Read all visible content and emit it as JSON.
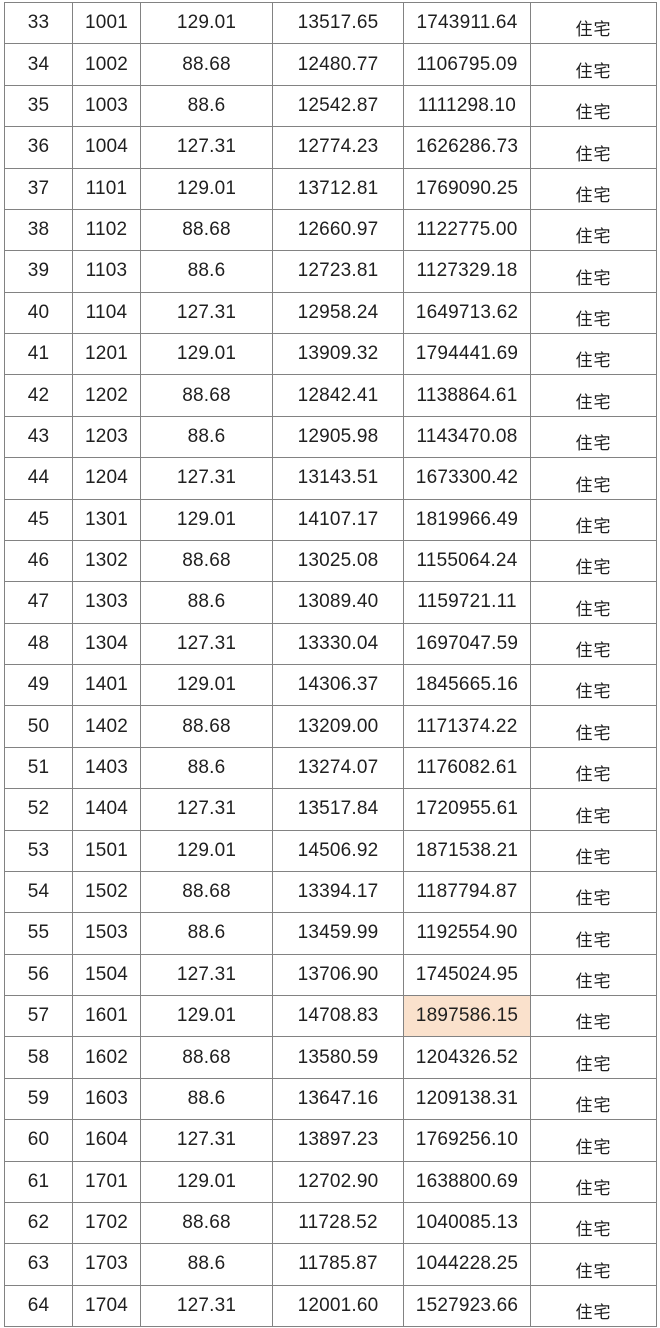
{
  "table": {
    "rows": [
      [
        "33",
        "1001",
        "129.01",
        "13517.65",
        "1743911.64",
        "住宅"
      ],
      [
        "34",
        "1002",
        "88.68",
        "12480.77",
        "1106795.09",
        "住宅"
      ],
      [
        "35",
        "1003",
        "88.6",
        "12542.87",
        "1111298.10",
        "住宅"
      ],
      [
        "36",
        "1004",
        "127.31",
        "12774.23",
        "1626286.73",
        "住宅"
      ],
      [
        "37",
        "1101",
        "129.01",
        "13712.81",
        "1769090.25",
        "住宅"
      ],
      [
        "38",
        "1102",
        "88.68",
        "12660.97",
        "1122775.00",
        "住宅"
      ],
      [
        "39",
        "1103",
        "88.6",
        "12723.81",
        "1127329.18",
        "住宅"
      ],
      [
        "40",
        "1104",
        "127.31",
        "12958.24",
        "1649713.62",
        "住宅"
      ],
      [
        "41",
        "1201",
        "129.01",
        "13909.32",
        "1794441.69",
        "住宅"
      ],
      [
        "42",
        "1202",
        "88.68",
        "12842.41",
        "1138864.61",
        "住宅"
      ],
      [
        "43",
        "1203",
        "88.6",
        "12905.98",
        "1143470.08",
        "住宅"
      ],
      [
        "44",
        "1204",
        "127.31",
        "13143.51",
        "1673300.42",
        "住宅"
      ],
      [
        "45",
        "1301",
        "129.01",
        "14107.17",
        "1819966.49",
        "住宅"
      ],
      [
        "46",
        "1302",
        "88.68",
        "13025.08",
        "1155064.24",
        "住宅"
      ],
      [
        "47",
        "1303",
        "88.6",
        "13089.40",
        "1159721.11",
        "住宅"
      ],
      [
        "48",
        "1304",
        "127.31",
        "13330.04",
        "1697047.59",
        "住宅"
      ],
      [
        "49",
        "1401",
        "129.01",
        "14306.37",
        "1845665.16",
        "住宅"
      ],
      [
        "50",
        "1402",
        "88.68",
        "13209.00",
        "1171374.22",
        "住宅"
      ],
      [
        "51",
        "1403",
        "88.6",
        "13274.07",
        "1176082.61",
        "住宅"
      ],
      [
        "52",
        "1404",
        "127.31",
        "13517.84",
        "1720955.61",
        "住宅"
      ],
      [
        "53",
        "1501",
        "129.01",
        "14506.92",
        "1871538.21",
        "住宅"
      ],
      [
        "54",
        "1502",
        "88.68",
        "13394.17",
        "1187794.87",
        "住宅"
      ],
      [
        "55",
        "1503",
        "88.6",
        "13459.99",
        "1192554.90",
        "住宅"
      ],
      [
        "56",
        "1504",
        "127.31",
        "13706.90",
        "1745024.95",
        "住宅"
      ],
      [
        "57",
        "1601",
        "129.01",
        "14708.83",
        "1897586.15",
        "住宅"
      ],
      [
        "58",
        "1602",
        "88.68",
        "13580.59",
        "1204326.52",
        "住宅"
      ],
      [
        "59",
        "1603",
        "88.6",
        "13647.16",
        "1209138.31",
        "住宅"
      ],
      [
        "60",
        "1604",
        "127.31",
        "13897.23",
        "1769256.10",
        "住宅"
      ],
      [
        "61",
        "1701",
        "129.01",
        "12702.90",
        "1638800.69",
        "住宅"
      ],
      [
        "62",
        "1702",
        "88.68",
        "11728.52",
        "1040085.13",
        "住宅"
      ],
      [
        "63",
        "1703",
        "88.6",
        "11785.87",
        "1044228.25",
        "住宅"
      ],
      [
        "64",
        "1704",
        "127.31",
        "12001.60",
        "1527923.66",
        "住宅"
      ]
    ],
    "highlight": {
      "row_index": 24,
      "col_index": 4,
      "color": "#fae1cc"
    },
    "colors": {
      "border": "#828282",
      "text": "#1f1f1f",
      "background": "#ffffff"
    }
  }
}
